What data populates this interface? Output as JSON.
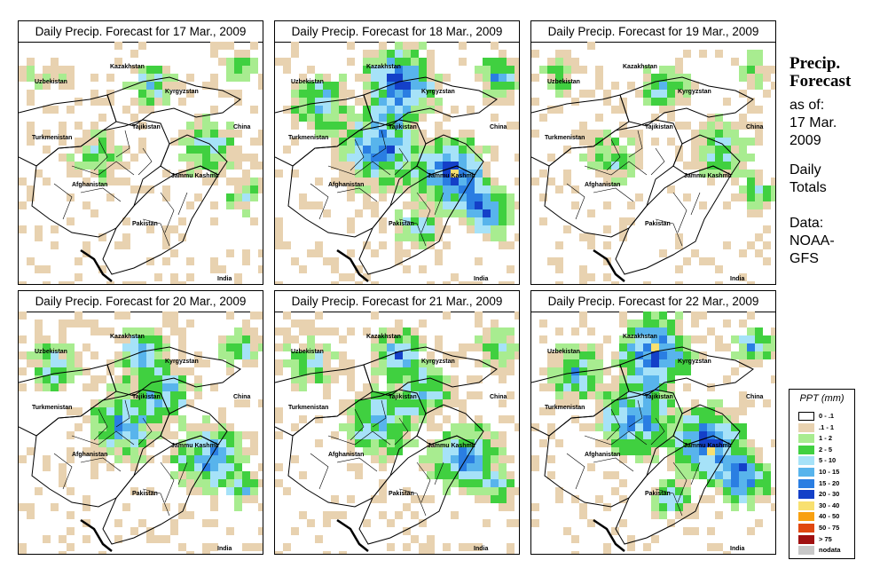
{
  "panels": [
    {
      "title": "Daily Precip. Forecast for  17 Mar., 2009",
      "day": "17 Mar."
    },
    {
      "title": "Daily Precip. Forecast for  18 Mar., 2009",
      "day": "18 Mar."
    },
    {
      "title": "Daily Precip. Forecast for  19 Mar., 2009",
      "day": "19 Mar."
    },
    {
      "title": "Daily Precip. Forecast for  20 Mar., 2009",
      "day": "20 Mar."
    },
    {
      "title": "Daily Precip. Forecast for  21 Mar., 2009",
      "day": "21 Mar."
    },
    {
      "title": "Daily Precip. Forecast for  22 Mar., 2009",
      "day": "22 Mar."
    }
  ],
  "map_labels": {
    "kazakhstan": "Kazakhstan",
    "uzbekistan": "Uzbekistan",
    "kyrgyzstan": "Kyrgyzstan",
    "tajikistan": "Tajikistan",
    "china": "China",
    "turkmenistan": "Turkmenistan",
    "afghanistan": "Afghanistan",
    "jammu_kashmir": "Jammu Kashmir",
    "pakistan": "Pakistan",
    "india": "India"
  },
  "sidebar": {
    "title_line1": "Precip.",
    "title_line2": "Forecast",
    "asof_line1": "as of:",
    "asof_line2": "17 Mar.",
    "asof_line3": "2009",
    "totals_line1": "Daily",
    "totals_line2": "Totals",
    "data_line1": "Data:",
    "data_line2": "NOAA-",
    "data_line3": "GFS"
  },
  "legend": {
    "title": "PPT (mm)",
    "items": [
      {
        "label": "0 - .1",
        "color": "#ffffff"
      },
      {
        "label": ".1 - 1",
        "color": "#e8d2b0"
      },
      {
        "label": "1 - 2",
        "color": "#a8ec90"
      },
      {
        "label": "2 - 5",
        "color": "#40d040"
      },
      {
        "label": "5 - 10",
        "color": "#a6e2f8"
      },
      {
        "label": "10 - 15",
        "color": "#58b4ec"
      },
      {
        "label": "15 - 20",
        "color": "#2a7ee2"
      },
      {
        "label": "20 - 30",
        "color": "#1440c8"
      },
      {
        "label": "30 - 40",
        "color": "#f8e070"
      },
      {
        "label": "40 - 50",
        "color": "#f8a010"
      },
      {
        "label": "50 - 75",
        "color": "#e04810"
      },
      {
        "label": "> 75",
        "color": "#a01010"
      },
      {
        "label": "nodata",
        "color": "#c8c8c8"
      }
    ]
  },
  "precip_intensity": {
    "17 Mar.": "light",
    "18 Mar.": "heavy",
    "19 Mar.": "light",
    "20 Mar.": "moderate",
    "21 Mar.": "moderate",
    "22 Mar.": "heavy"
  }
}
